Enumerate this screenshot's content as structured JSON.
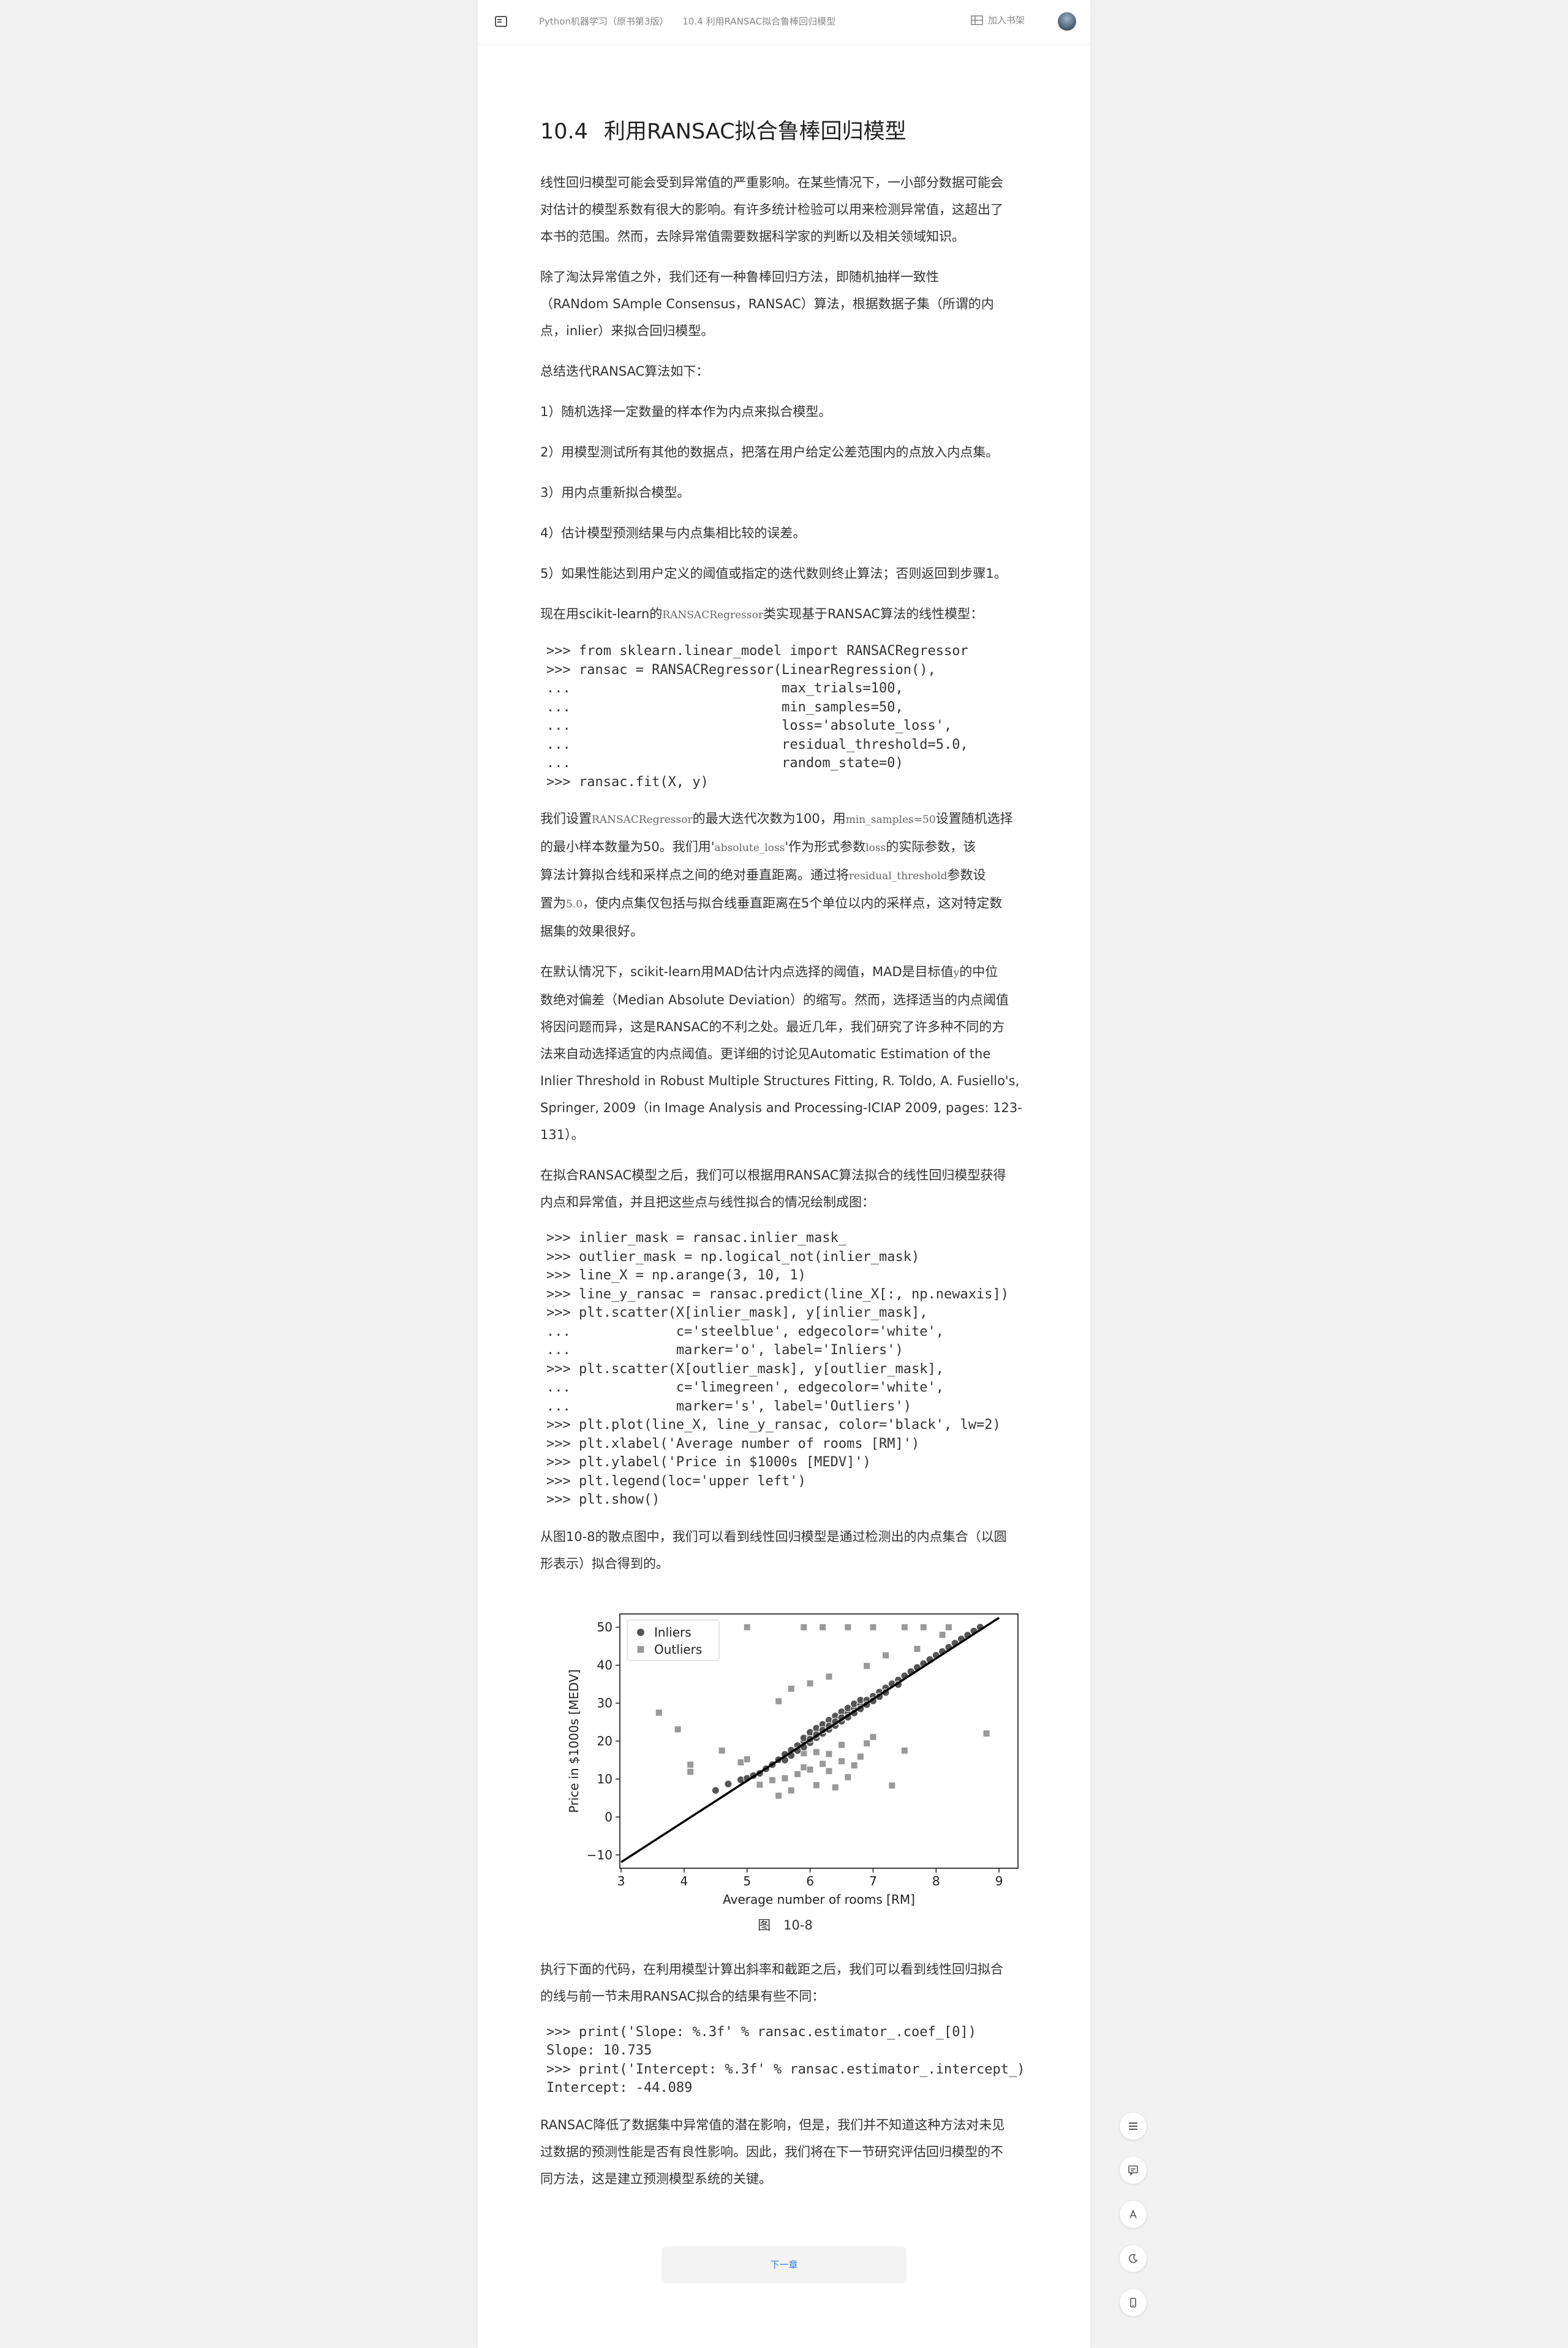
{
  "header": {
    "breadcrumb_book": "Python机器学习（原书第3版）",
    "breadcrumb_section": "10.4 利用RANSAC拟合鲁棒回归模型",
    "shelf_label": "加入书架"
  },
  "section": {
    "number": "10.4",
    "title": "利用RANSAC拟合鲁棒回归模型"
  },
  "paragraphs": {
    "p1_lines": [
      "线性回归模型可能会受到异常值的严重影响。在某些情况下，一小部分数据可能会",
      "对估计的模型系数有很大的影响。有许多统计检验可以用来检测异常值，这超出了",
      "本书的范围。然而，去除异常值需要数据科学家的判断以及相关领域知识。"
    ],
    "p2_lines": [
      "除了淘汰异常值之外，我们还有一种鲁棒回归方法，即随机抽样一致性",
      "（RANdom SAmple Consensus，RANSAC）算法，根据数据子集（所谓的内",
      "点，inlier）来拟合回归模型。"
    ],
    "p3": "总结迭代RANSAC算法如下：",
    "steps": [
      "1）随机选择一定数量的样本作为内点来拟合模型。",
      "2）用模型测试所有其他的数据点，把落在用户给定公差范围内的点放入内点集。",
      "3）用内点重新拟合模型。",
      "4）估计模型预测结果与内点集相比较的误差。",
      "5）如果性能达到用户定义的阈值或指定的迭代数则终止算法；否则返回到步骤1。"
    ],
    "p4_pre": "现在用scikit-learn的",
    "p4_code": "RANSACRegressor",
    "p4_post": "类实现基于RANSAC算法的线性模型：",
    "p5_l1_a": "我们设置",
    "p5_l1_code1": "RANSACRegressor",
    "p5_l1_b": "的最大迭代次数为100，用",
    "p5_l1_code2": "min_samples=50",
    "p5_l1_c": "设置随机选择",
    "p5_l2_a": "的最小样本数量为50。我们用'",
    "p5_l2_code1": "absolute_loss",
    "p5_l2_b": "'作为形式参数",
    "p5_l2_code2": "loss",
    "p5_l2_c": "的实际参数，该",
    "p5_l3_a": "算法计算拟合线和采样点之间的绝对垂直距离。通过将",
    "p5_l3_code": "residual_threshold",
    "p5_l3_b": "参数设",
    "p5_l4_a": "置为",
    "p5_l4_code": "5.0",
    "p5_l4_b": "，使内点集仅包括与拟合线垂直距离在5个单位以内的采样点，这对特定数",
    "p5_l5": "据集的效果很好。",
    "p6_l1_a": "在默认情况下，scikit-learn用MAD估计内点选择的阈值，MAD是目标值",
    "p6_l1_code": "y",
    "p6_l1_b": "的中位",
    "p6_lines": [
      "数绝对偏差（Median Absolute Deviation）的缩写。然而，选择适当的内点阈值",
      "将因问题而异，这是RANSAC的不利之处。最近几年，我们研究了许多种不同的方",
      "法来自动选择适宜的内点阈值。更详细的讨论见Automatic Estimation of the",
      "Inlier Threshold in Robust Multiple Structures Fitting, R. Toldo, A. Fusiello's,",
      "Springer, 2009（in Image Analysis and Processing-ICIAP 2009, pages: 123-",
      "131）。"
    ],
    "p7_lines": [
      "在拟合RANSAC模型之后，我们可以根据用RANSAC算法拟合的线性回归模型获得",
      "内点和异常值，并且把这些点与线性拟合的情况绘制成图："
    ],
    "p8_lines": [
      "从图10-8的散点图中，我们可以看到线性回归模型是通过检测出的内点集合（以圆",
      "形表示）拟合得到的。"
    ],
    "p9_lines": [
      "执行下面的代码，在利用模型计算出斜率和截距之后，我们可以看到线性回归拟合",
      "的线与前一节未用RANSAC拟合的结果有些不同："
    ],
    "p10_lines": [
      "RANSAC降低了数据集中异常值的潜在影响，但是，我们并不知道这种方法对未见",
      "过数据的预测性能是否有良性影响。因此，我们将在下一节研究评估回归模型的不",
      "同方法，这是建立预测模型系统的关键。"
    ]
  },
  "code1": [
    ">>> from sklearn.linear_model import RANSACRegressor",
    ">>> ransac = RANSACRegressor(LinearRegression(),",
    "...                          max_trials=100,",
    "...                          min_samples=50,",
    "...                          loss='absolute_loss',",
    "...                          residual_threshold=5.0,",
    "...                          random_state=0)",
    ">>> ransac.fit(X, y)"
  ],
  "code2": [
    ">>> inlier_mask = ransac.inlier_mask_",
    ">>> outlier_mask = np.logical_not(inlier_mask)",
    ">>> line_X = np.arange(3, 10, 1)",
    ">>> line_y_ransac = ransac.predict(line_X[:, np.newaxis])",
    ">>> plt.scatter(X[inlier_mask], y[inlier_mask],",
    "...             c='steelblue', edgecolor='white',",
    "...             marker='o', label='Inliers')",
    ">>> plt.scatter(X[outlier_mask], y[outlier_mask],",
    "...             c='limegreen', edgecolor='white',",
    "...             marker='s', label='Outliers')",
    ">>> plt.plot(line_X, line_y_ransac, color='black', lw=2)",
    ">>> plt.xlabel('Average number of rooms [RM]')",
    ">>> plt.ylabel('Price in $1000s [MEDV]')",
    ">>> plt.legend(loc='upper left')",
    ">>> plt.show()"
  ],
  "code3": [
    ">>> print('Slope: %.3f' % ransac.estimator_.coef_[0])",
    "Slope: 10.735",
    ">>> print('Intercept: %.3f' % ransac.estimator_.intercept_)",
    "Intercept: -44.089"
  ],
  "figure_caption": "图　10-8",
  "chart_data": {
    "type": "scatter",
    "title": "",
    "xlabel": "Average number of rooms [RM]",
    "ylabel": "Price in $1000s [MEDV]",
    "xlim": [
      2.98,
      9.3
    ],
    "ylim": [
      -13.5,
      53.5
    ],
    "xticks": [
      3,
      4,
      5,
      6,
      7,
      8,
      9
    ],
    "yticks": [
      -10,
      0,
      10,
      20,
      30,
      40,
      50
    ],
    "grid": false,
    "legend_position": "top-left",
    "colors": {
      "inliers": "#555555",
      "outliers": "#999999",
      "line": "#000000"
    },
    "series": [
      {
        "name": "Inliers",
        "marker": "circle",
        "x": [
          5.2,
          5.4,
          5.5,
          5.6,
          5.6,
          5.7,
          5.7,
          5.8,
          5.8,
          5.9,
          5.9,
          5.9,
          6.0,
          6.0,
          6.0,
          6.0,
          6.1,
          6.1,
          6.1,
          6.1,
          6.2,
          6.2,
          6.2,
          6.2,
          6.3,
          6.3,
          6.3,
          6.3,
          6.4,
          6.4,
          6.4,
          6.4,
          6.5,
          6.5,
          6.5,
          6.5,
          6.6,
          6.6,
          6.6,
          6.7,
          6.7,
          6.7,
          6.8,
          6.8,
          6.8,
          6.9,
          6.9,
          7.0,
          7.0,
          7.1,
          7.1,
          7.2,
          7.2,
          7.3,
          7.4,
          7.4,
          7.5,
          7.6,
          7.7,
          7.8,
          7.9,
          8.0,
          8.1,
          8.2,
          8.3,
          8.4,
          8.5,
          8.6,
          8.7,
          4.5,
          4.7,
          4.9,
          5.0,
          5.1,
          5.3
        ],
        "y": [
          11.5,
          13.8,
          15.1,
          16.5,
          15.0,
          17.6,
          16.2,
          18.8,
          17.5,
          19.9,
          18.4,
          20.8,
          21.0,
          19.6,
          22.3,
          20.5,
          22.1,
          20.9,
          23.4,
          21.7,
          23.2,
          22.0,
          24.4,
          22.9,
          24.3,
          23.1,
          25.5,
          24.0,
          25.4,
          24.1,
          26.6,
          25.1,
          26.4,
          25.2,
          27.7,
          26.2,
          27.5,
          26.3,
          28.7,
          28.6,
          27.4,
          29.8,
          29.7,
          28.5,
          30.8,
          30.8,
          29.6,
          31.8,
          30.6,
          32.9,
          31.7,
          34.0,
          32.8,
          35.1,
          36.1,
          34.9,
          37.2,
          38.3,
          39.4,
          40.4,
          41.5,
          42.6,
          43.6,
          44.7,
          45.8,
          46.9,
          47.9,
          49.0,
          50.0,
          7.0,
          8.7,
          9.8,
          10.2,
          10.9,
          12.7
        ]
      },
      {
        "name": "Outliers",
        "marker": "square",
        "x": [
          3.6,
          3.9,
          4.1,
          4.1,
          4.6,
          4.9,
          5.0,
          5.2,
          5.4,
          5.5,
          5.6,
          5.7,
          5.8,
          5.9,
          5.9,
          6.0,
          6.1,
          6.1,
          6.2,
          6.3,
          6.3,
          6.4,
          6.5,
          6.5,
          6.6,
          6.7,
          6.8,
          6.9,
          7.0,
          7.3,
          7.5,
          7.9,
          5.0,
          5.9,
          6.2,
          6.6,
          7.0,
          7.5,
          7.8,
          8.2,
          8.8,
          5.5,
          5.7,
          6.0,
          6.3,
          6.9,
          7.2,
          7.7,
          8.1
        ],
        "y": [
          27.5,
          23.1,
          13.8,
          11.9,
          17.5,
          14.4,
          15.2,
          8.5,
          9.7,
          5.6,
          10.2,
          7.0,
          11.3,
          13.1,
          16.8,
          12.5,
          8.4,
          17.1,
          14.0,
          12.1,
          16.6,
          7.8,
          14.7,
          19.0,
          10.5,
          13.6,
          15.9,
          19.4,
          21.1,
          8.3,
          17.5,
          41.3,
          50.0,
          50.0,
          50.0,
          50.0,
          50.0,
          50.0,
          50.0,
          50.0,
          22.0,
          30.5,
          33.8,
          35.2,
          37.0,
          39.8,
          42.6,
          44.3,
          48.0
        ]
      },
      {
        "name": "",
        "type": "line",
        "x": [
          3,
          9
        ],
        "y": [
          -11.9,
          52.5
        ]
      }
    ]
  }
}
